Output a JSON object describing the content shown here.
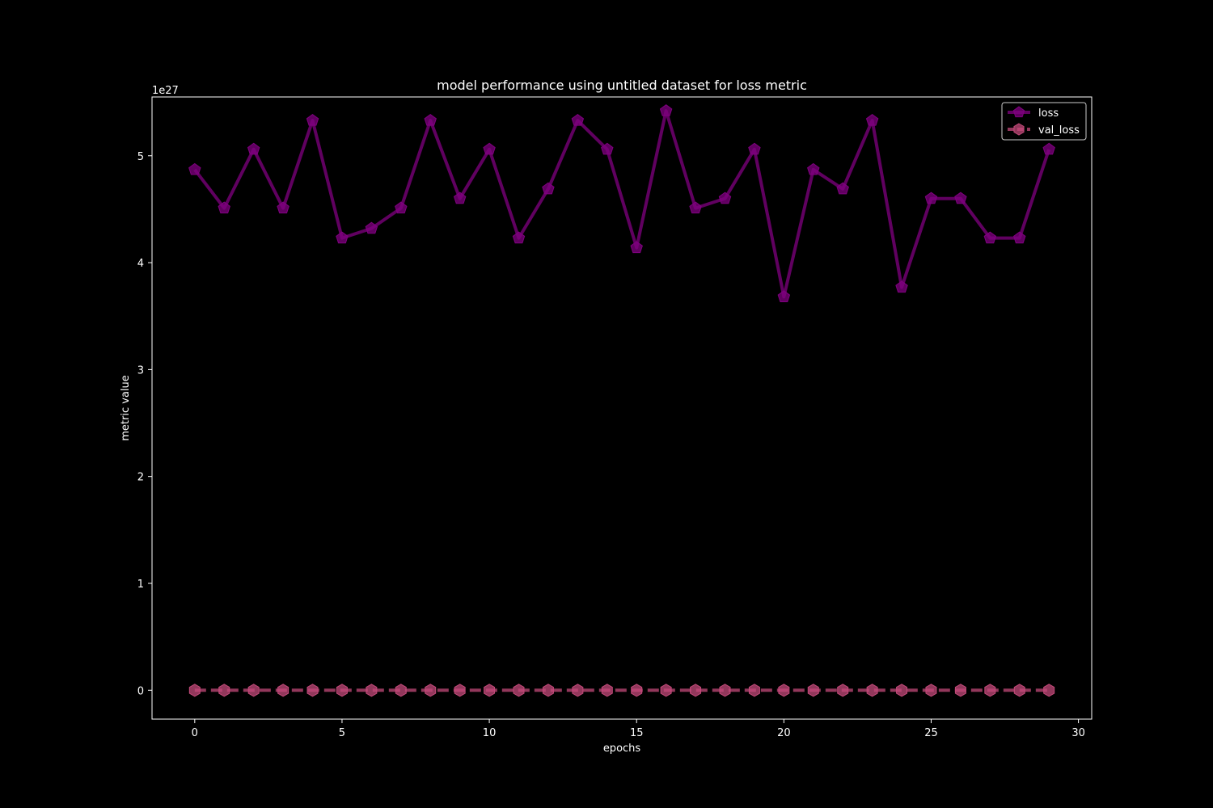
{
  "chart_data": {
    "type": "line",
    "title": "model performance using untitled dataset for loss metric",
    "xlabel": "epochs",
    "ylabel": "metric value",
    "y_offset_label": "1e27",
    "xlim": [
      -1.45,
      30.45
    ],
    "ylim": [
      -0.27,
      5.55
    ],
    "y_scale_factor": "1e27",
    "xticks": [
      0,
      5,
      10,
      15,
      20,
      25,
      30
    ],
    "yticks": [
      0,
      1,
      2,
      3,
      4,
      5
    ],
    "grid": false,
    "legend_position": "top-right",
    "x": [
      0,
      1,
      2,
      3,
      4,
      5,
      6,
      7,
      8,
      9,
      10,
      11,
      12,
      13,
      14,
      15,
      16,
      17,
      18,
      19,
      20,
      21,
      22,
      23,
      24,
      25,
      26,
      27,
      28,
      29
    ],
    "series": [
      {
        "name": "loss",
        "color": "#800080",
        "marker": "pentagon",
        "linestyle": "solid",
        "values": [
          4.87,
          4.51,
          5.06,
          4.51,
          5.33,
          4.23,
          4.32,
          4.51,
          5.33,
          4.6,
          5.06,
          4.23,
          4.69,
          5.33,
          5.06,
          4.14,
          5.42,
          4.51,
          4.6,
          5.06,
          3.68,
          4.87,
          4.69,
          5.33,
          3.77,
          4.6,
          4.6,
          4.23,
          4.23,
          5.06
        ]
      },
      {
        "name": "val_loss",
        "color": "#c34a7a",
        "marker": "hexagon",
        "linestyle": "dashed",
        "values": [
          0,
          0,
          0,
          0,
          0,
          0,
          0,
          0,
          0,
          0,
          0,
          0,
          0,
          0,
          0,
          0,
          0,
          0,
          0,
          0,
          0,
          0,
          0,
          0,
          0,
          0,
          0,
          0,
          0,
          0
        ]
      }
    ]
  }
}
